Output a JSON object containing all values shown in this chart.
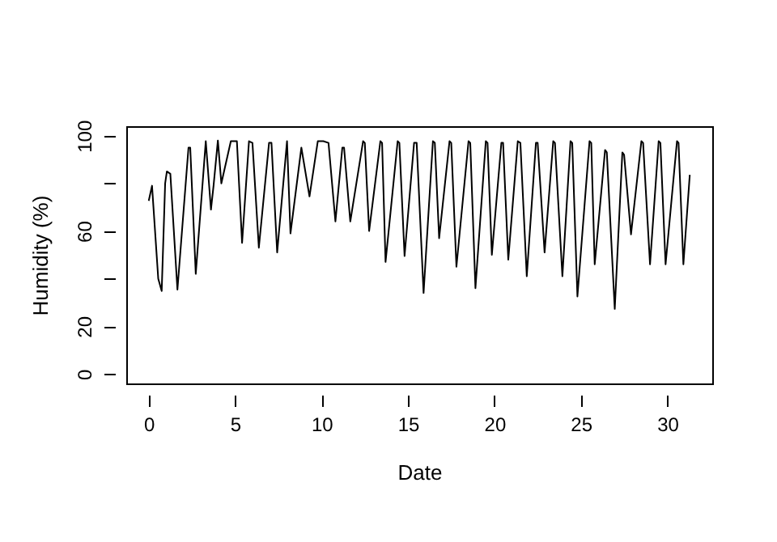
{
  "chart_data": {
    "type": "line",
    "xlabel": "Date",
    "ylabel": "Humidity (%)",
    "x": [
      0,
      0.19,
      0.55,
      0.75,
      0.95,
      1.05,
      1.25,
      1.66,
      2.3,
      2.4,
      2.72,
      3.3,
      3.6,
      3.75,
      4.0,
      4.2,
      4.75,
      5.1,
      5.4,
      5.8,
      6.0,
      6.37,
      6.96,
      7.1,
      7.43,
      8.0,
      8.2,
      8.83,
      9.3,
      9.78,
      10.1,
      10.4,
      10.8,
      11.2,
      11.3,
      11.66,
      12.4,
      12.5,
      12.75,
      13.4,
      13.5,
      13.7,
      14.4,
      14.5,
      14.8,
      15.35,
      15.5,
      15.9,
      16.44,
      16.55,
      16.8,
      17.4,
      17.5,
      17.8,
      18.5,
      18.6,
      18.9,
      19.5,
      19.6,
      19.85,
      20.4,
      20.5,
      20.8,
      21.35,
      21.5,
      21.87,
      22.4,
      22.5,
      22.9,
      23.4,
      23.5,
      23.93,
      24.4,
      24.5,
      24.8,
      25.5,
      25.6,
      25.8,
      26.4,
      26.5,
      26.96,
      27.4,
      27.5,
      27.9,
      28.5,
      28.6,
      29.0,
      29.5,
      29.6,
      29.9,
      30.56,
      30.65,
      30.93,
      31.3
    ],
    "series": [
      {
        "color": "#000000",
        "values": [
          72.7,
          79,
          40,
          34.8,
          80,
          85,
          84,
          35.4,
          95,
          95,
          42,
          97.7,
          69,
          79,
          98,
          80,
          97.7,
          97.7,
          55,
          97.7,
          97,
          53,
          97,
          97,
          51,
          97.7,
          59,
          95,
          74.5,
          97.7,
          97.7,
          97,
          64,
          95,
          95,
          64,
          97.7,
          97,
          60,
          97.7,
          97,
          47,
          97.7,
          97,
          49.5,
          97,
          97,
          34,
          97.7,
          97,
          57,
          97.7,
          97,
          45,
          97.7,
          97,
          36,
          97.7,
          97,
          50,
          97,
          97,
          48,
          97.7,
          97,
          41,
          97,
          97,
          51,
          97.7,
          97,
          41,
          97.7,
          97,
          32.5,
          97.7,
          97,
          46,
          94,
          93,
          27.3,
          93,
          92,
          58.6,
          97.7,
          97,
          46,
          97.7,
          97,
          46,
          97.7,
          97,
          46,
          83.6
        ]
      }
    ],
    "xlim": [
      -1.3,
      32.6
    ],
    "xticks": [
      0,
      5,
      10,
      15,
      20,
      25,
      30
    ],
    "ylim": [
      -4,
      104
    ],
    "yticks": [
      0,
      20,
      {
        "value": 40,
        "label": null
      },
      60,
      {
        "value": 80,
        "label": null
      },
      100
    ],
    "grid": false,
    "marker": "none",
    "line_style": "solid"
  }
}
